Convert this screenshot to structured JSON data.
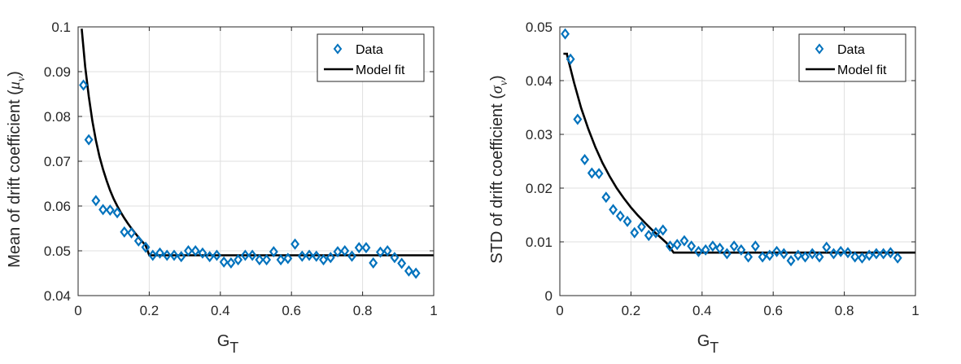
{
  "colors": {
    "data": "#0072BD",
    "fit": "#000000",
    "grid": "#dfdfdf",
    "axis": "#262626"
  },
  "chart_data": [
    {
      "type": "scatter",
      "xlabel": "G",
      "xlabel_sub": "T",
      "ylabel": "Mean of drift coefficient (",
      "ylabel_sym": "μ",
      "ylabel_sub": "ν",
      "ylabel_end": ")",
      "xlim": [
        0,
        1
      ],
      "ylim": [
        0.04,
        0.1
      ],
      "xticks": [
        0,
        0.2,
        0.4,
        0.6,
        0.8,
        1
      ],
      "xtick_labels": [
        "0",
        "0.2",
        "0.4",
        "0.6",
        "0.8",
        "1"
      ],
      "yticks": [
        0.04,
        0.05,
        0.06,
        0.07,
        0.08,
        0.09,
        0.1
      ],
      "ytick_labels": [
        "0.04",
        "0.05",
        "0.06",
        "0.07",
        "0.08",
        "0.09",
        "0.1"
      ],
      "grid": true,
      "legend_position": "top-right",
      "series": [
        {
          "name": "Data",
          "marker": "diamond",
          "x": [
            0.015,
            0.03,
            0.05,
            0.07,
            0.09,
            0.11,
            0.13,
            0.15,
            0.17,
            0.19,
            0.21,
            0.23,
            0.25,
            0.27,
            0.29,
            0.31,
            0.33,
            0.35,
            0.37,
            0.39,
            0.41,
            0.43,
            0.45,
            0.47,
            0.49,
            0.51,
            0.53,
            0.55,
            0.57,
            0.59,
            0.61,
            0.63,
            0.65,
            0.67,
            0.69,
            0.71,
            0.73,
            0.75,
            0.77,
            0.79,
            0.81,
            0.83,
            0.85,
            0.87,
            0.89,
            0.91,
            0.93,
            0.95
          ],
          "y": [
            0.087,
            0.0748,
            0.0612,
            0.0592,
            0.0591,
            0.0585,
            0.0542,
            0.054,
            0.0522,
            0.0508,
            0.049,
            0.0495,
            0.049,
            0.049,
            0.0487,
            0.05,
            0.05,
            0.0495,
            0.0487,
            0.049,
            0.0475,
            0.0473,
            0.048,
            0.049,
            0.049,
            0.048,
            0.048,
            0.0498,
            0.048,
            0.0483,
            0.0515,
            0.0488,
            0.049,
            0.0488,
            0.048,
            0.0485,
            0.0498,
            0.05,
            0.0488,
            0.0507,
            0.0507,
            0.0473,
            0.0497,
            0.05,
            0.0485,
            0.0472,
            0.0455,
            0.045
          ]
        },
        {
          "name": "Model fit",
          "style": "line",
          "x": [
            0.01,
            0.02,
            0.03,
            0.04,
            0.05,
            0.06,
            0.07,
            0.08,
            0.09,
            0.1,
            0.11,
            0.12,
            0.13,
            0.14,
            0.15,
            0.16,
            0.17,
            0.18,
            0.19,
            0.2,
            0.3,
            0.4,
            0.5,
            0.6,
            0.7,
            0.8,
            0.9,
            1.0
          ],
          "y": [
            0.0996,
            0.0911,
            0.0845,
            0.079,
            0.0747,
            0.0711,
            0.0682,
            0.0657,
            0.0635,
            0.0616,
            0.06,
            0.0586,
            0.0573,
            0.0561,
            0.055,
            0.054,
            0.053,
            0.0521,
            0.0512,
            0.049,
            0.049,
            0.049,
            0.049,
            0.049,
            0.049,
            0.049,
            0.049,
            0.049
          ]
        }
      ]
    },
    {
      "type": "scatter",
      "xlabel": "G",
      "xlabel_sub": "T",
      "ylabel": "STD of drift coefficient (",
      "ylabel_sym": "σ",
      "ylabel_sub": "ν",
      "ylabel_end": ")",
      "xlim": [
        0,
        1
      ],
      "ylim": [
        0,
        0.05
      ],
      "xticks": [
        0,
        0.2,
        0.4,
        0.6,
        0.8,
        1
      ],
      "xtick_labels": [
        "0",
        "0.2",
        "0.4",
        "0.6",
        "0.8",
        "1"
      ],
      "yticks": [
        0,
        0.01,
        0.02,
        0.03,
        0.04,
        0.05
      ],
      "ytick_labels": [
        "0",
        "0.01",
        "0.02",
        "0.03",
        "0.04",
        "0.05"
      ],
      "grid": true,
      "legend_position": "top-right",
      "series": [
        {
          "name": "Data",
          "marker": "diamond",
          "x": [
            0.015,
            0.03,
            0.05,
            0.07,
            0.09,
            0.11,
            0.13,
            0.15,
            0.17,
            0.19,
            0.21,
            0.23,
            0.25,
            0.27,
            0.29,
            0.31,
            0.33,
            0.35,
            0.37,
            0.39,
            0.41,
            0.43,
            0.45,
            0.47,
            0.49,
            0.51,
            0.53,
            0.55,
            0.57,
            0.59,
            0.61,
            0.63,
            0.65,
            0.67,
            0.69,
            0.71,
            0.73,
            0.75,
            0.77,
            0.79,
            0.81,
            0.83,
            0.85,
            0.87,
            0.89,
            0.91,
            0.93,
            0.95
          ],
          "y": [
            0.0487,
            0.044,
            0.0328,
            0.0253,
            0.0228,
            0.0227,
            0.0183,
            0.016,
            0.0148,
            0.0138,
            0.0117,
            0.0128,
            0.0112,
            0.0117,
            0.0122,
            0.0092,
            0.0095,
            0.0102,
            0.0092,
            0.0082,
            0.0085,
            0.0092,
            0.0088,
            0.0078,
            0.0092,
            0.0085,
            0.0072,
            0.0092,
            0.0072,
            0.0075,
            0.0082,
            0.0078,
            0.0065,
            0.0075,
            0.0072,
            0.0078,
            0.0072,
            0.009,
            0.0078,
            0.0082,
            0.008,
            0.0072,
            0.007,
            0.0075,
            0.0078,
            0.0078,
            0.008,
            0.007
          ]
        },
        {
          "name": "Model fit",
          "style": "line",
          "x": [
            0.01,
            0.02,
            0.02,
            0.04,
            0.06,
            0.08,
            0.1,
            0.12,
            0.14,
            0.16,
            0.18,
            0.2,
            0.22,
            0.24,
            0.26,
            0.28,
            0.3,
            0.32,
            0.4,
            0.5,
            0.6,
            0.7,
            0.8,
            0.9,
            1.0
          ],
          "y": [
            0.045,
            0.045,
            0.0449,
            0.0396,
            0.0349,
            0.031,
            0.0276,
            0.0247,
            0.0222,
            0.02,
            0.0181,
            0.0164,
            0.0149,
            0.0135,
            0.0122,
            0.011,
            0.0098,
            0.008,
            0.008,
            0.008,
            0.008,
            0.008,
            0.008,
            0.008,
            0.008
          ]
        }
      ]
    }
  ]
}
